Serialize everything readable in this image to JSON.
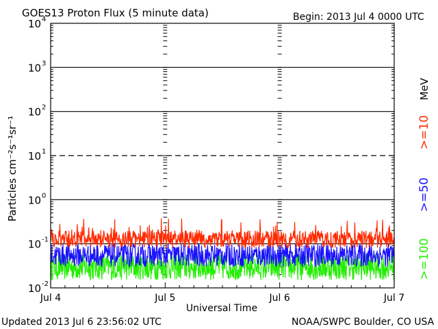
{
  "chart_data": {
    "type": "line",
    "title": "GOES13 Proton Flux (5 minute data)",
    "begin_label": "Begin: 2013 Jul 4 0000 UTC",
    "xlabel": "Universal Time",
    "ylabel": "Particles cm⁻²s⁻¹sr⁻¹",
    "y_scale": "log",
    "ylim": [
      0.01,
      10000
    ],
    "y_ticks": [
      {
        "base": "10",
        "exp": "4"
      },
      {
        "base": "10",
        "exp": "3"
      },
      {
        "base": "10",
        "exp": "2"
      },
      {
        "base": "10",
        "exp": "1"
      },
      {
        "base": "10",
        "exp": "0"
      },
      {
        "base": "10",
        "exp": "-1"
      },
      {
        "base": "10",
        "exp": "-2"
      }
    ],
    "x_range_days": [
      0,
      3
    ],
    "x_ticks": [
      "Jul 4",
      "Jul 5",
      "Jul 6",
      "Jul 7"
    ],
    "series": [
      {
        "name": ">=10",
        "color": "#ff2a00",
        "typical_range": [
          0.08,
          0.2
        ]
      },
      {
        "name": ">=50",
        "color": "#1a10ff",
        "typical_range": [
          0.03,
          0.1
        ]
      },
      {
        "name": ">=100",
        "color": "#22ee00",
        "typical_range": [
          0.015,
          0.06
        ]
      }
    ],
    "unit_label": "MeV",
    "grid": true
  },
  "footer": {
    "updated": "Updated 2013 Jul  6 23:56:02 UTC",
    "credit": "NOAA/SWPC Boulder, CO USA"
  }
}
